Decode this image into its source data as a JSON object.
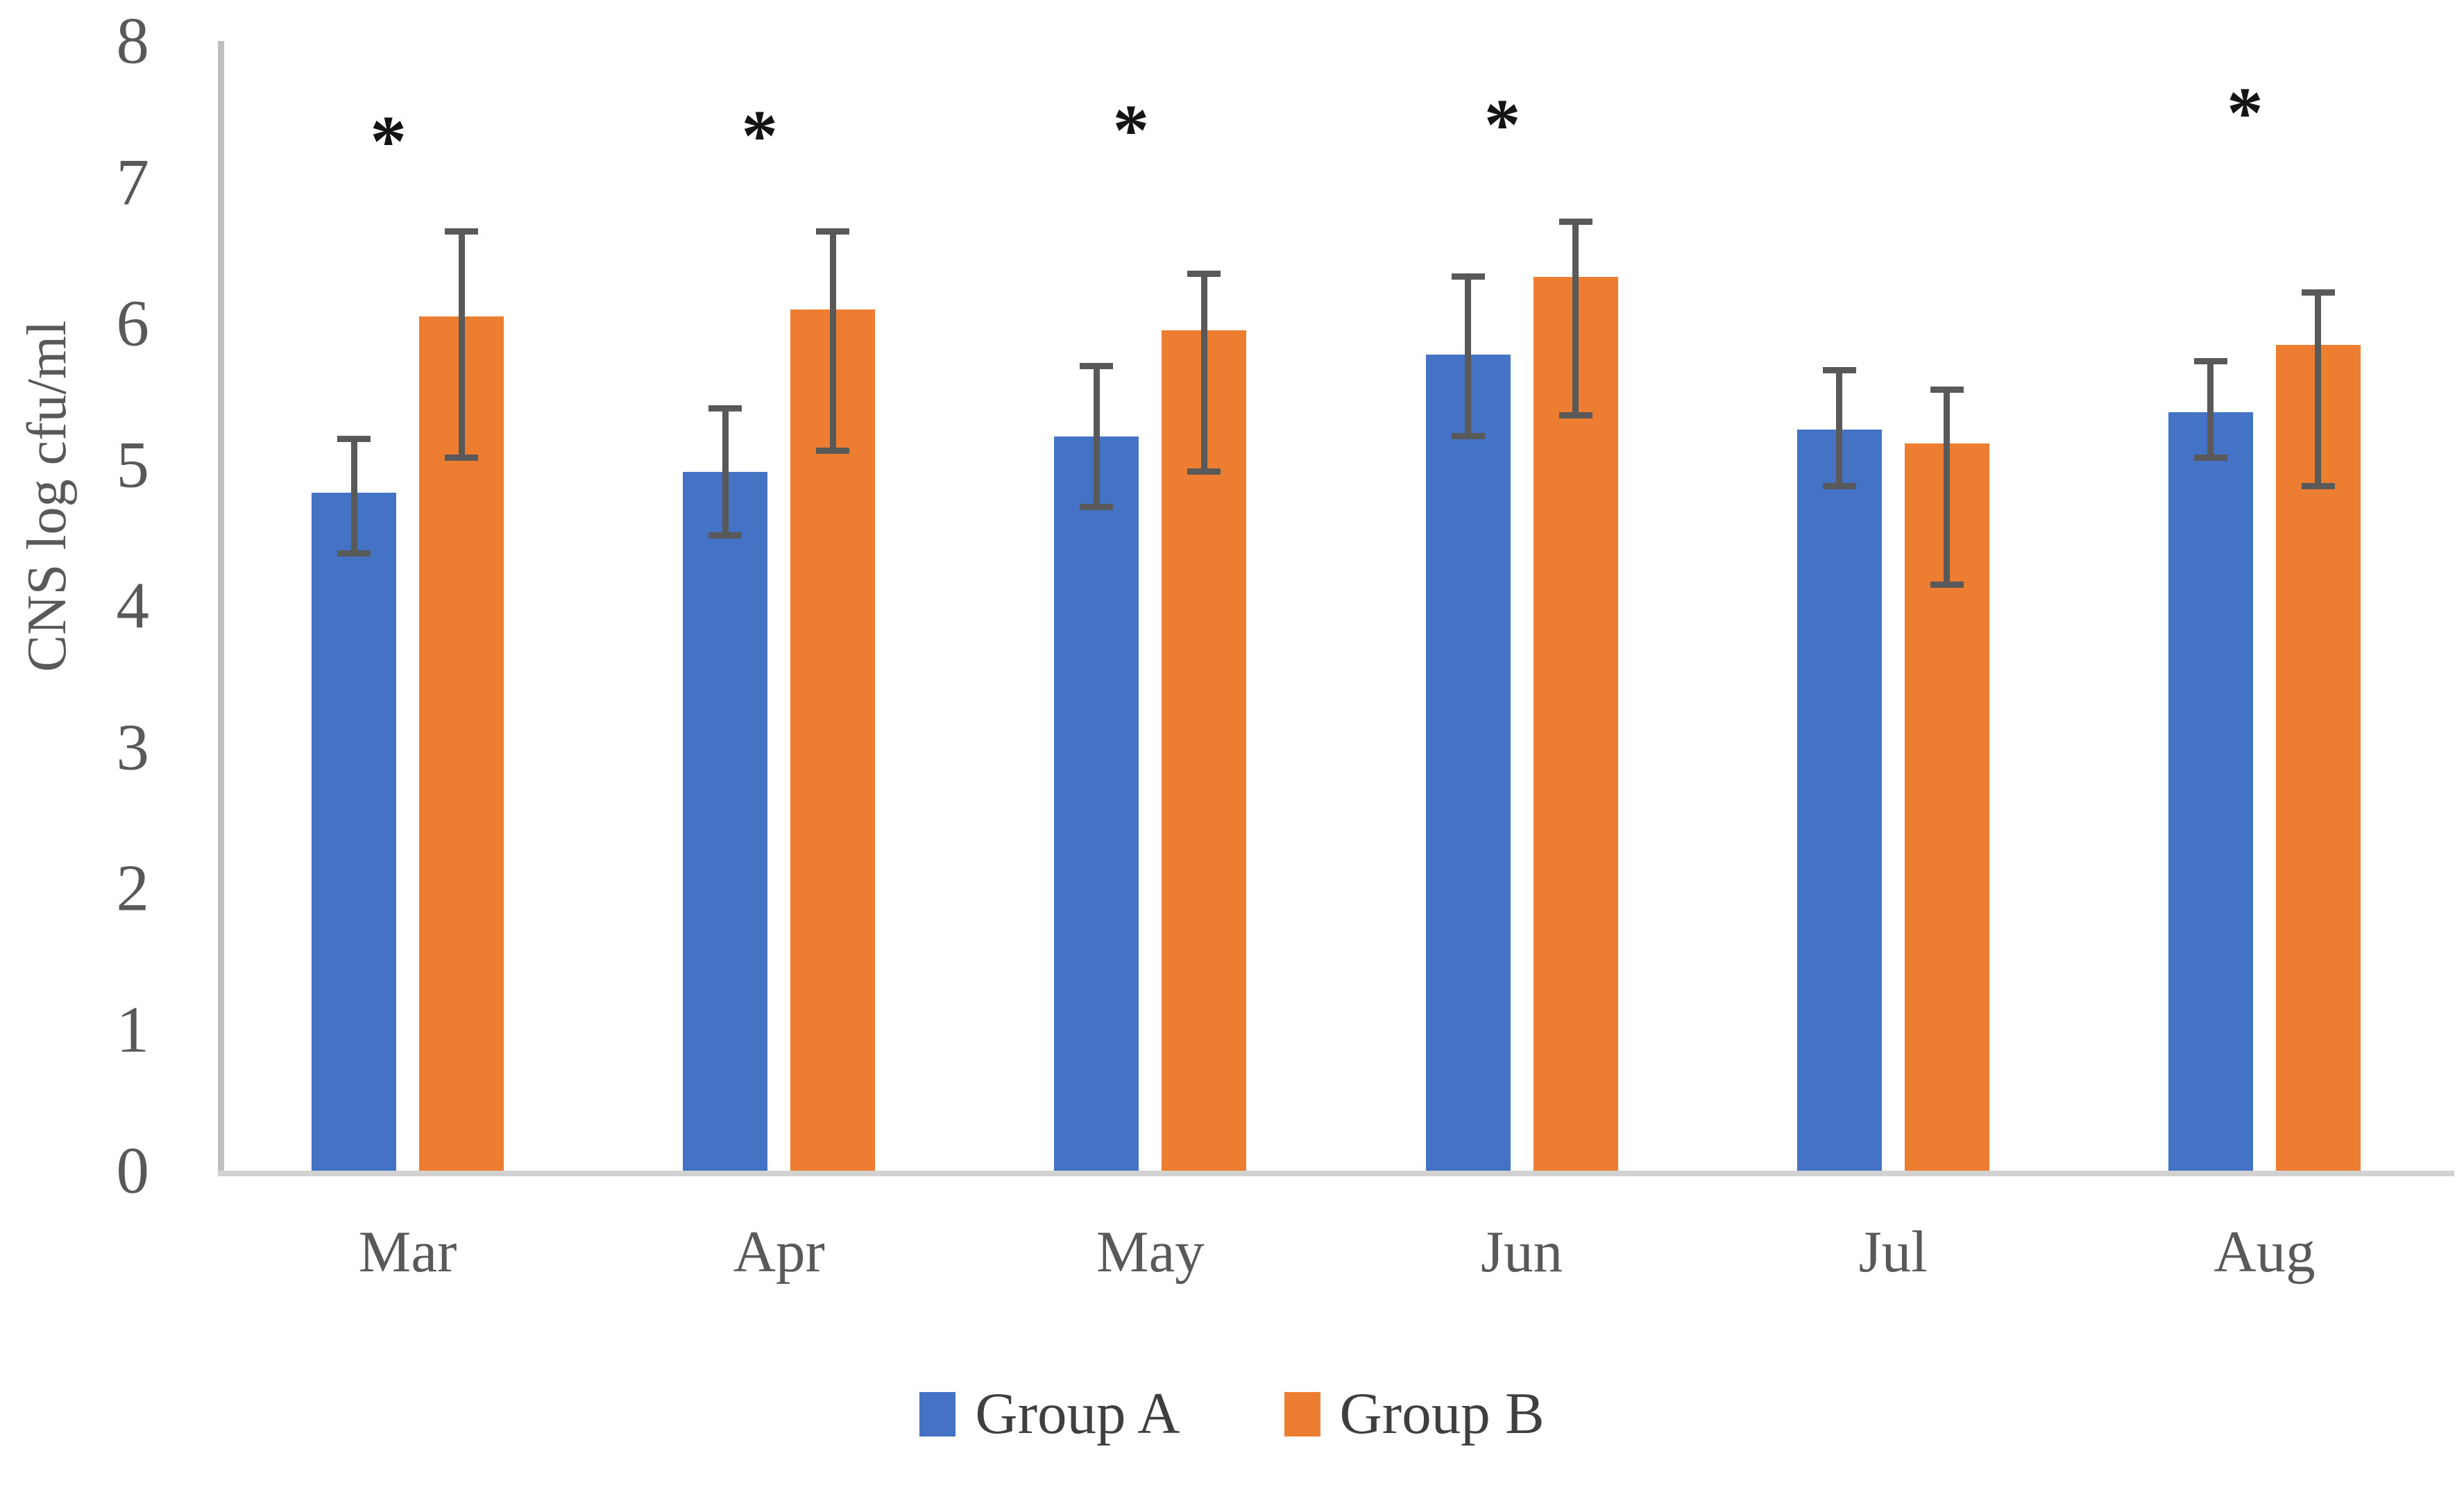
{
  "chart_data": {
    "type": "bar",
    "title": "",
    "xlabel": "",
    "ylabel": "CNS log cfu/ml",
    "ylim": [
      0,
      8
    ],
    "yticks": [
      0,
      1,
      2,
      3,
      4,
      5,
      6,
      7,
      8
    ],
    "grid": false,
    "legend_position": "bottom",
    "categories": [
      "Mar",
      "Apr",
      "May",
      "Jun",
      "Jul",
      "Aug"
    ],
    "series": [
      {
        "name": "Group A",
        "color": "#4472C4",
        "values": [
          4.8,
          4.95,
          5.2,
          5.78,
          5.25,
          5.37
        ],
        "error_low": [
          4.37,
          4.5,
          4.7,
          5.2,
          4.85,
          5.05
        ],
        "error_high": [
          5.18,
          5.4,
          5.7,
          6.33,
          5.67,
          5.73
        ]
      },
      {
        "name": "Group B",
        "color": "#ED7D31",
        "values": [
          6.05,
          6.1,
          5.95,
          6.33,
          5.15,
          5.85
        ],
        "error_low": [
          5.05,
          5.1,
          4.95,
          5.35,
          4.15,
          4.85
        ],
        "error_high": [
          6.65,
          6.65,
          6.35,
          6.72,
          5.53,
          6.22
        ]
      }
    ],
    "significance": {
      "symbol": "*",
      "per_category": [
        "*",
        "*",
        "*",
        "*",
        null,
        "*"
      ],
      "symbol_y": [
        7.38,
        7.42,
        7.46,
        7.5,
        null,
        7.58
      ]
    },
    "colors": {
      "error_bar": "#595959",
      "axis_line": "#BFBFBF",
      "baseline": "#D2D2D2",
      "tick_label": "#595959",
      "legend_text": "#3f3f3f",
      "significance": "#141414"
    }
  }
}
